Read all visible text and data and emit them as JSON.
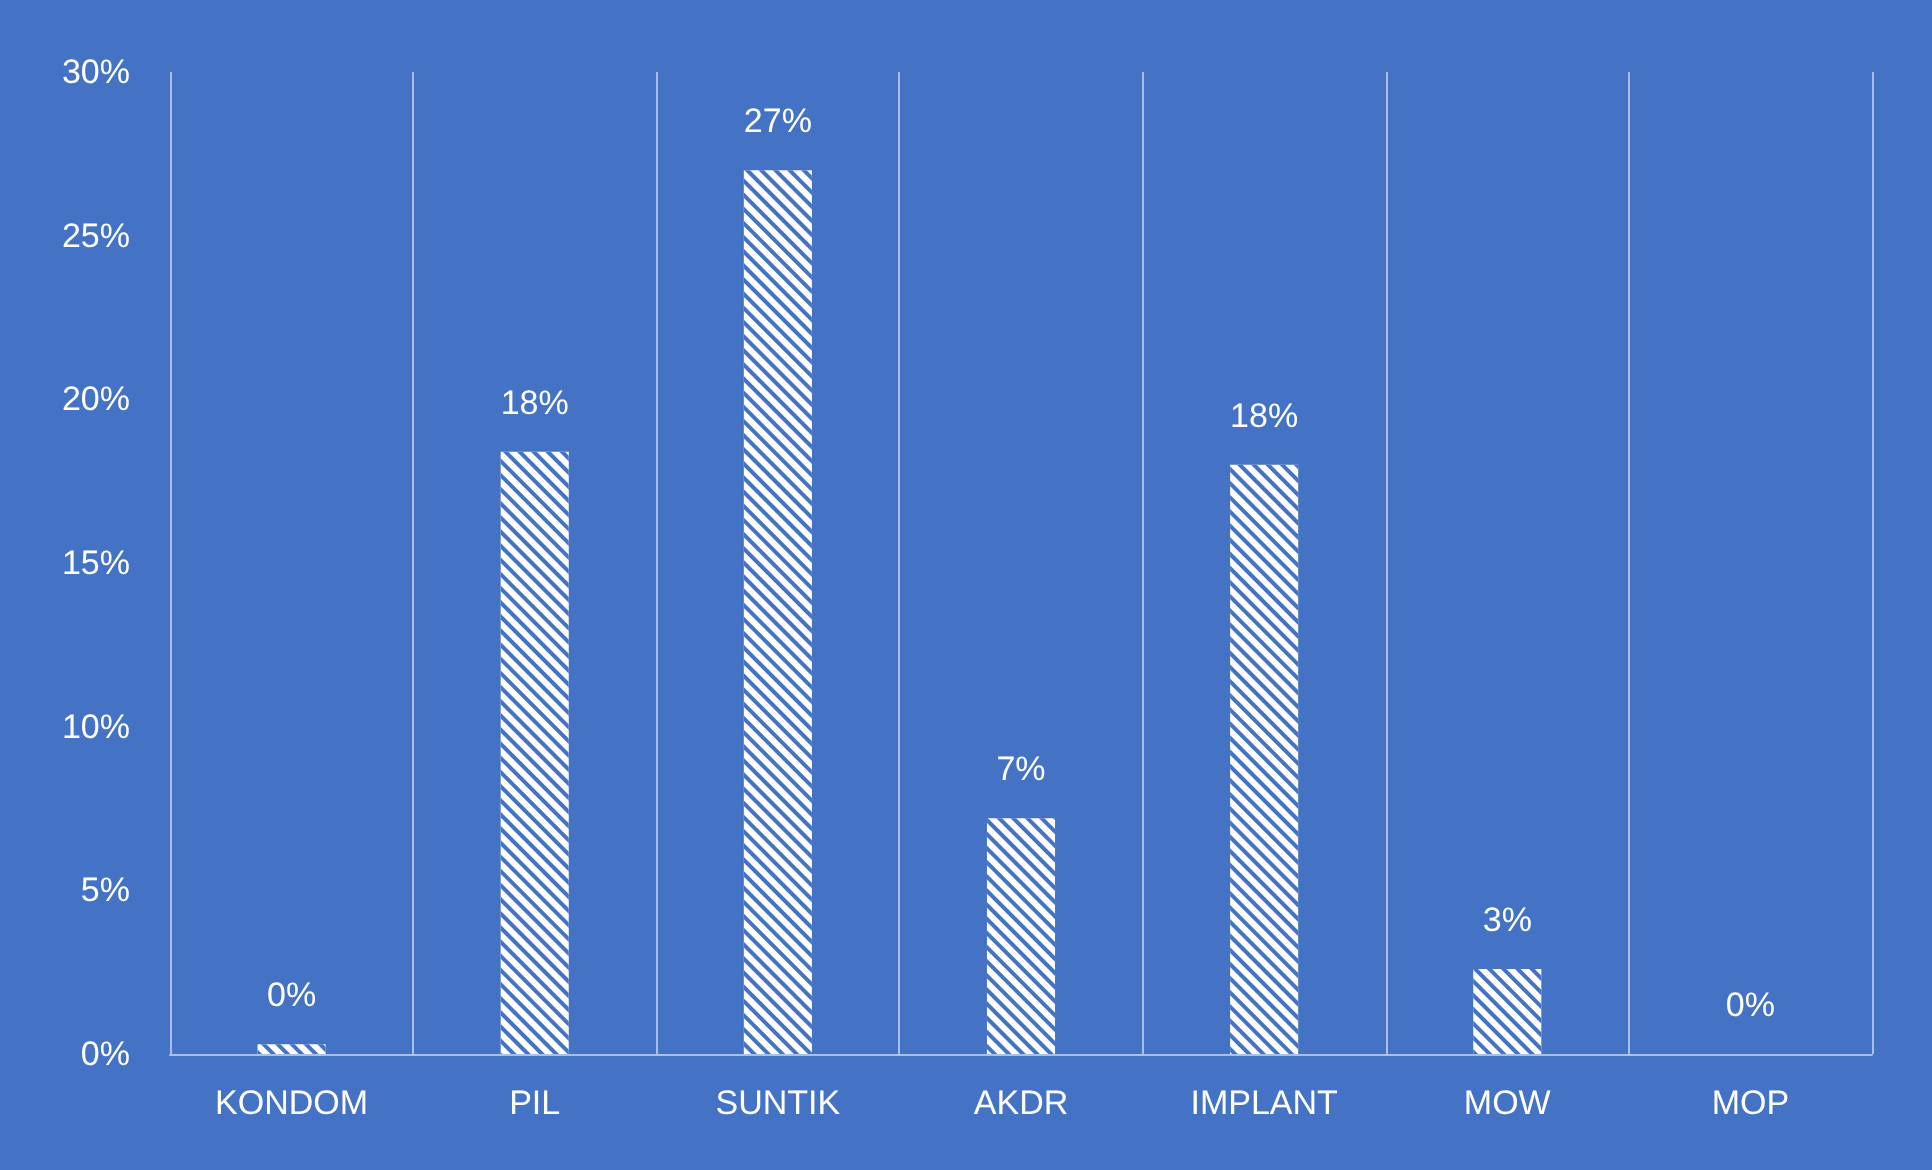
{
  "chart_data": {
    "type": "bar",
    "categories": [
      "KONDOM",
      "PIL",
      "SUNTIK",
      "AKDR",
      "IMPLANT",
      "MOW",
      "MOP"
    ],
    "values": [
      0.3,
      18.4,
      27,
      7.2,
      18,
      2.6,
      0
    ],
    "value_labels": [
      "0%",
      "18%",
      "27%",
      "7%",
      "18%",
      "3%",
      "0%"
    ],
    "color": "#ffffff",
    "ylim": [
      0,
      30
    ],
    "yticks": [
      {
        "value": 0,
        "label": "0%"
      },
      {
        "value": 5,
        "label": "5%"
      },
      {
        "value": 10,
        "label": "10%"
      },
      {
        "value": 15,
        "label": "15%"
      },
      {
        "value": 20,
        "label": "20%"
      },
      {
        "value": 25,
        "label": "25%"
      },
      {
        "value": 30,
        "label": "30%"
      }
    ],
    "grid": "x"
  }
}
